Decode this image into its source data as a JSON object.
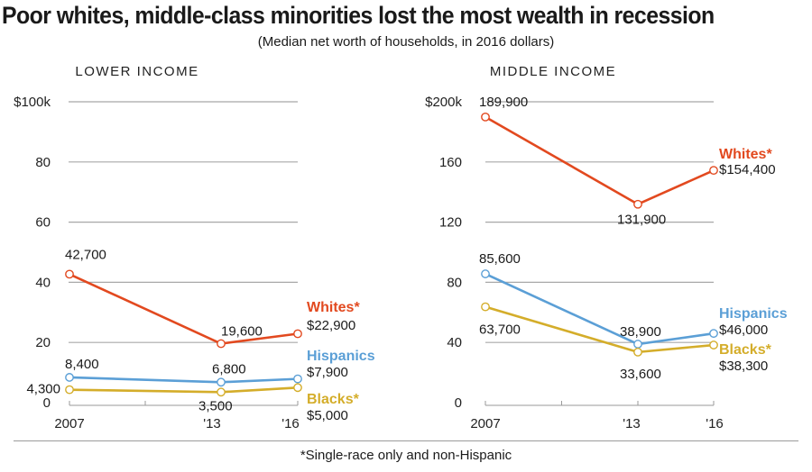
{
  "title": "Poor whites, middle-class minorities lost the most wealth in recession",
  "subtitle": "(Median net worth of households, in 2016 dollars)",
  "footnote": "*Single-race only and non-Hispanic",
  "colors": {
    "whites": "#e2491f",
    "hispanics": "#5b9fd6",
    "blacks": "#d4ad2a",
    "grid": "#a8a8a8",
    "axis": "#9a9a9a"
  },
  "chart_data": [
    {
      "type": "line",
      "panel": "left",
      "title": "LOWER INCOME",
      "categories": [
        "2007",
        "'13",
        "'16"
      ],
      "x": [
        2007,
        2013,
        2016
      ],
      "ylim": [
        0,
        100000
      ],
      "yticks": [
        0,
        20000,
        40000,
        60000,
        80000,
        100000
      ],
      "ytick_labels": [
        "0",
        "20",
        "40",
        "60",
        "80",
        "$100k"
      ],
      "grid": true,
      "series": [
        {
          "name": "Whites*",
          "key": "whites",
          "values": [
            42700,
            19600,
            22900
          ],
          "labels": [
            "42,700",
            "19,600",
            "$22,900"
          ]
        },
        {
          "name": "Hispanics",
          "key": "hispanics",
          "values": [
            8400,
            6800,
            7900
          ],
          "labels": [
            "8,400",
            "6,800",
            "$7,900"
          ]
        },
        {
          "name": "Blacks*",
          "key": "blacks",
          "values": [
            4300,
            3500,
            5000
          ],
          "labels": [
            "4,300",
            "3,500",
            "$5,000"
          ]
        }
      ]
    },
    {
      "type": "line",
      "panel": "right",
      "title": "MIDDLE INCOME",
      "categories": [
        "2007",
        "'13",
        "'16"
      ],
      "x": [
        2007,
        2013,
        2016
      ],
      "ylim": [
        0,
        200000
      ],
      "yticks": [
        0,
        40000,
        80000,
        120000,
        160000,
        200000
      ],
      "ytick_labels": [
        "0",
        "40",
        "80",
        "120",
        "160",
        "$200k"
      ],
      "grid": true,
      "series": [
        {
          "name": "Whites*",
          "key": "whites",
          "values": [
            189900,
            131900,
            154400
          ],
          "labels": [
            "189,900",
            "131,900",
            "$154,400"
          ]
        },
        {
          "name": "Hispanics",
          "key": "hispanics",
          "values": [
            85600,
            38900,
            46000
          ],
          "labels": [
            "85,600",
            "38,900",
            "$46,000"
          ]
        },
        {
          "name": "Blacks*",
          "key": "blacks",
          "values": [
            63700,
            33600,
            38300
          ],
          "labels": [
            "63,700",
            "33,600",
            "$38,300"
          ]
        }
      ]
    }
  ]
}
